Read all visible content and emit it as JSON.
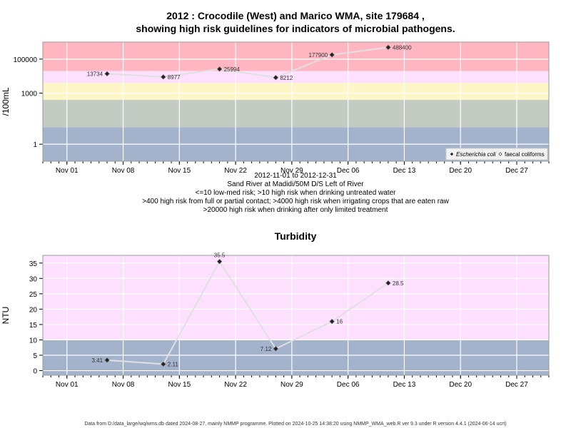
{
  "chart_data": [
    {
      "type": "line",
      "title_line1": "2012 : Crocodile (West) and Marico WMA, site 179684 ,",
      "title_line2": "showing high risk guidelines for indicators of microbial pathogens.",
      "ylabel": "/100mL",
      "y_scale": "log",
      "ylim": [
        0.1,
        1000000
      ],
      "y_ticks": [
        {
          "value": 1,
          "label": "1"
        },
        {
          "value": 1000,
          "label": "1000"
        },
        {
          "value": 100000,
          "label": "100000"
        }
      ],
      "x_ticks": [
        "Nov 01",
        "Nov 08",
        "Nov 15",
        "Nov 22",
        "Nov 29",
        "Dec 06",
        "Dec 13",
        "Dec 20",
        "Dec 27"
      ],
      "xlim": [
        "2012-10-29",
        "2012-12-31"
      ],
      "bands": [
        {
          "from": 0.1,
          "to": 10,
          "color": "#a3b3cc"
        },
        {
          "from": 10,
          "to": 400,
          "color": "#c3cbc3"
        },
        {
          "from": 400,
          "to": 4000,
          "color": "#fff6c8"
        },
        {
          "from": 4000,
          "to": 20000,
          "color": "#fde0fd"
        },
        {
          "from": 20000,
          "to": 1000000,
          "color": "#ffb6c1"
        }
      ],
      "series": [
        {
          "name": "Escherichia coli",
          "x": [
            "2012-11-06",
            "2012-11-13",
            "2012-11-20",
            "2012-11-27",
            "2012-12-04",
            "2012-12-11"
          ],
          "values": [
            13734,
            8977,
            25994,
            8212,
            177900,
            488400
          ],
          "labels": [
            "13734",
            "8977",
            "25994",
            "8212",
            "177900",
            "488400"
          ]
        }
      ],
      "legend": {
        "position": "bottom-right",
        "entries": [
          "Escherichia coli",
          "faecal coliforms"
        ]
      },
      "caption": [
        "2012-11-01 to 2012-12-31",
        "Sand River at Madidi/50M D/S Left of River",
        "<=10 low-med risk; >10 high risk when drinking untreated water",
        ">400 high risk from full or partial contact; >4000 high risk when irrigating crops that are eaten raw",
        ">20000 high risk when drinking after only limited treatment"
      ],
      "grid": true
    },
    {
      "type": "line",
      "title": "Turbidity",
      "ylabel": "NTU",
      "ylim": [
        -1.5,
        37.5
      ],
      "y_ticks": [
        0,
        5,
        10,
        15,
        20,
        25,
        30,
        35
      ],
      "x_ticks": [
        "Nov 01",
        "Nov 08",
        "Nov 15",
        "Nov 22",
        "Nov 29",
        "Dec 06",
        "Dec 13",
        "Dec 20",
        "Dec 27"
      ],
      "xlim": [
        "2012-10-29",
        "2012-12-31"
      ],
      "bands": [
        {
          "from": -1.5,
          "to": 10,
          "color": "#a3b3cc"
        },
        {
          "from": 10,
          "to": 37.5,
          "color": "#fde0fd"
        }
      ],
      "series": [
        {
          "name": "Turbidity",
          "x": [
            "2012-11-06",
            "2012-11-13",
            "2012-11-20",
            "2012-11-27",
            "2012-12-04",
            "2012-12-11"
          ],
          "values": [
            3.41,
            2.11,
            35.5,
            7.12,
            16,
            28.5
          ],
          "labels": [
            "3.41",
            "2.11",
            "35.5",
            "7.12",
            "16",
            "28.5"
          ]
        }
      ],
      "grid": true
    }
  ],
  "footer": "Data from D:/data_large/wq/wms.db dated 2024-08-27, mainly NMMP programme. Plotted on 2024-10-25 14:38:20 using NMMP_WMA_web.R ver 9.3 under R version 4.4.1 (2024-06-14 ucrt)"
}
